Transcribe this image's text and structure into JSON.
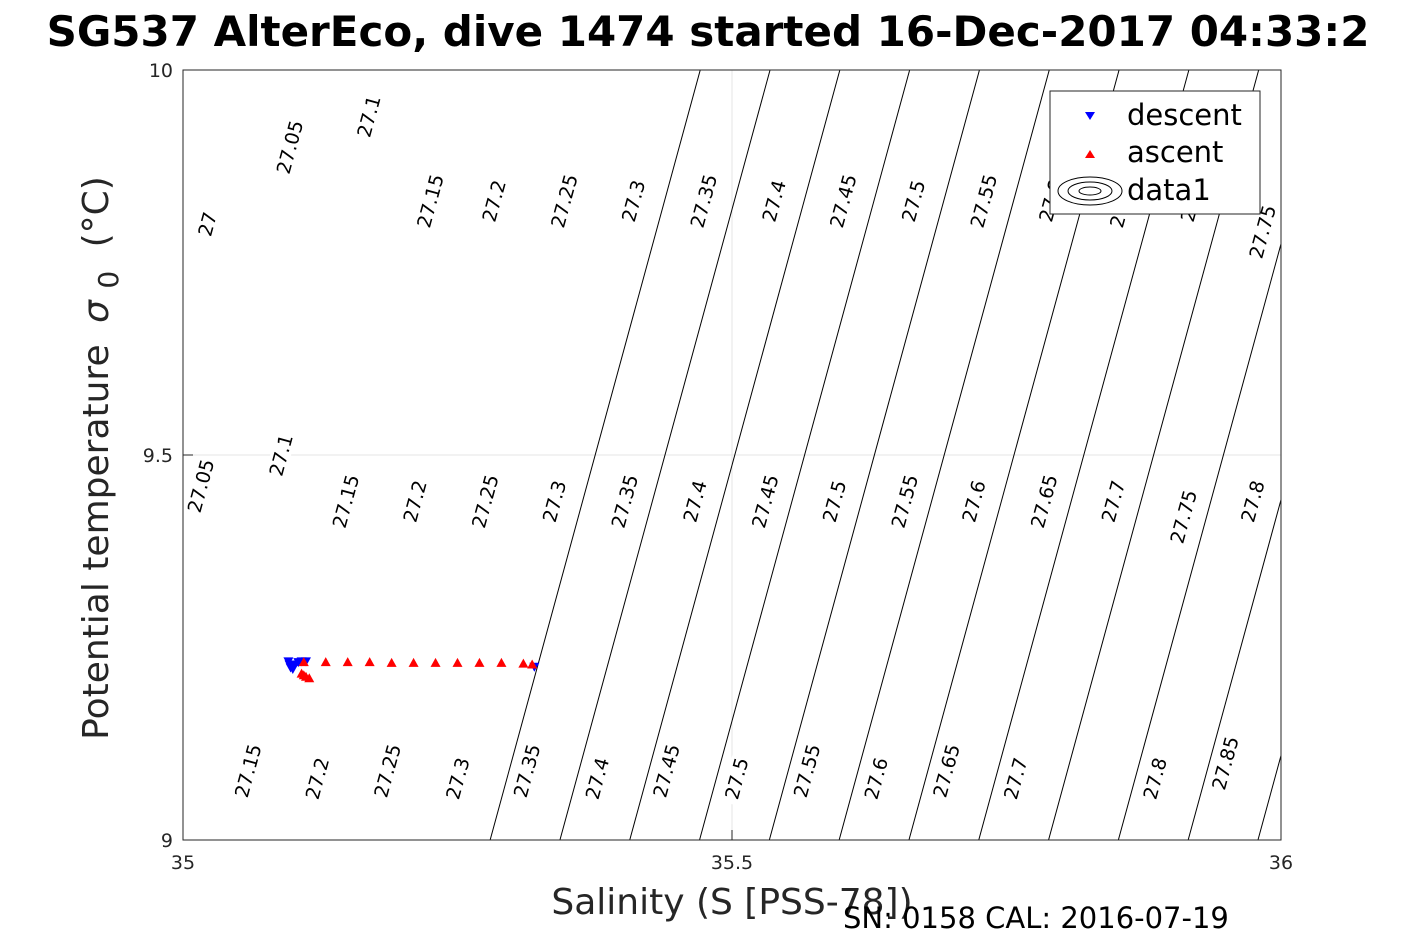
{
  "chart_data": {
    "type": "scatter",
    "title": "SG537 AlterEco, dive 1474 started 16-Dec-2017 04:33:2",
    "xlabel": "Salinity (S [PSS-78])",
    "ylabel": "Potential temperature",
    "ylabel_symbol": "σ",
    "ylabel_subscript": "0",
    "ylabel_unit": "(°C)",
    "xlim": [
      35,
      36
    ],
    "ylim": [
      9,
      10
    ],
    "x_ticks": [
      "35",
      "35.5",
      "36"
    ],
    "y_ticks": [
      "9",
      "9.5",
      "10"
    ],
    "grid": true,
    "legend_position": "top-right",
    "legend": [
      {
        "name": "descent",
        "marker": "triangle-down",
        "color": "#0000ff"
      },
      {
        "name": "ascent",
        "marker": "triangle-up",
        "color": "#ff0000"
      },
      {
        "name": "data1",
        "marker": "contour",
        "color": "#000000"
      }
    ],
    "series": [
      {
        "name": "descent",
        "color": "#0000ff",
        "x": [
          35.096,
          35.097,
          35.098,
          35.1,
          35.102,
          35.105,
          35.108,
          35.112,
          35.32
        ],
        "y": [
          9.232,
          9.228,
          9.224,
          9.222,
          9.228,
          9.231,
          9.232,
          9.232,
          9.225
        ]
      },
      {
        "name": "ascent",
        "color": "#ff0000",
        "x": [
          35.11,
          35.13,
          35.15,
          35.17,
          35.19,
          35.21,
          35.23,
          35.25,
          35.27,
          35.29,
          35.31,
          35.318,
          35.108,
          35.11,
          35.112,
          35.115
        ],
        "y": [
          9.231,
          9.231,
          9.231,
          9.231,
          9.23,
          9.23,
          9.23,
          9.23,
          9.23,
          9.23,
          9.229,
          9.228,
          9.216,
          9.214,
          9.212,
          9.21
        ]
      }
    ],
    "density_contours": {
      "levels": [
        "27",
        "27.05",
        "27.1",
        "27.15",
        "27.2",
        "27.25",
        "27.3",
        "27.35",
        "27.4",
        "27.45",
        "27.5",
        "27.55",
        "27.6",
        "27.65",
        "27.7",
        "27.75",
        "27.8",
        "27.85"
      ],
      "labels": [
        {
          "text": "27",
          "s": 35.022,
          "t": 9.8
        },
        {
          "text": "27.05",
          "s": 35.097,
          "t": 9.9
        },
        {
          "text": "27.1",
          "s": 35.169,
          "t": 9.94
        },
        {
          "text": "27.15",
          "s": 35.225,
          "t": 9.83
        },
        {
          "text": "27.2",
          "s": 35.283,
          "t": 9.83
        },
        {
          "text": "27.25",
          "s": 35.347,
          "t": 9.83
        },
        {
          "text": "27.3",
          "s": 35.41,
          "t": 9.83
        },
        {
          "text": "27.35",
          "s": 35.474,
          "t": 9.83
        },
        {
          "text": "27.4",
          "s": 35.538,
          "t": 9.83
        },
        {
          "text": "27.45",
          "s": 35.601,
          "t": 9.83
        },
        {
          "text": "27.5",
          "s": 35.665,
          "t": 9.83
        },
        {
          "text": "27.55",
          "s": 35.729,
          "t": 9.83
        },
        {
          "text": "27.6",
          "s": 35.79,
          "t": 9.83
        },
        {
          "text": "27.65",
          "s": 35.856,
          "t": 9.83
        },
        {
          "text": "27.7",
          "s": 35.919,
          "t": 9.83
        },
        {
          "text": "27.75",
          "s": 35.983,
          "t": 9.79
        },
        {
          "text": "27.05",
          "s": 35.016,
          "t": 9.46
        },
        {
          "text": "27.1",
          "s": 35.089,
          "t": 9.5
        },
        {
          "text": "27.15",
          "s": 35.148,
          "t": 9.44
        },
        {
          "text": "27.2",
          "s": 35.211,
          "t": 9.44
        },
        {
          "text": "27.25",
          "s": 35.275,
          "t": 9.44
        },
        {
          "text": "27.3",
          "s": 35.338,
          "t": 9.44
        },
        {
          "text": "27.35",
          "s": 35.402,
          "t": 9.44
        },
        {
          "text": "27.4",
          "s": 35.466,
          "t": 9.44
        },
        {
          "text": "27.45",
          "s": 35.53,
          "t": 9.44
        },
        {
          "text": "27.5",
          "s": 35.593,
          "t": 9.44
        },
        {
          "text": "27.55",
          "s": 35.657,
          "t": 9.44
        },
        {
          "text": "27.6",
          "s": 35.72,
          "t": 9.44
        },
        {
          "text": "27.65",
          "s": 35.784,
          "t": 9.44
        },
        {
          "text": "27.7",
          "s": 35.847,
          "t": 9.44
        },
        {
          "text": "27.75",
          "s": 35.911,
          "t": 9.42
        },
        {
          "text": "27.8",
          "s": 35.974,
          "t": 9.44
        },
        {
          "text": "27.15",
          "s": 35.059,
          "t": 9.09
        },
        {
          "text": "27.2",
          "s": 35.122,
          "t": 9.08
        },
        {
          "text": "27.25",
          "s": 35.186,
          "t": 9.09
        },
        {
          "text": "27.3",
          "s": 35.25,
          "t": 9.08
        },
        {
          "text": "27.35",
          "s": 35.313,
          "t": 9.09
        },
        {
          "text": "27.4",
          "s": 35.377,
          "t": 9.08
        },
        {
          "text": "27.45",
          "s": 35.44,
          "t": 9.09
        },
        {
          "text": "27.5",
          "s": 35.504,
          "t": 9.08
        },
        {
          "text": "27.55",
          "s": 35.568,
          "t": 9.09
        },
        {
          "text": "27.6",
          "s": 35.631,
          "t": 9.08
        },
        {
          "text": "27.65",
          "s": 35.695,
          "t": 9.09
        },
        {
          "text": "27.7",
          "s": 35.758,
          "t": 9.08
        },
        {
          "text": "27.8",
          "s": 35.885,
          "t": 9.08
        },
        {
          "text": "27.85",
          "s": 35.949,
          "t": 9.1
        }
      ]
    }
  },
  "footer": {
    "serial": "SN: 0158  CAL: 2016-07-19"
  }
}
